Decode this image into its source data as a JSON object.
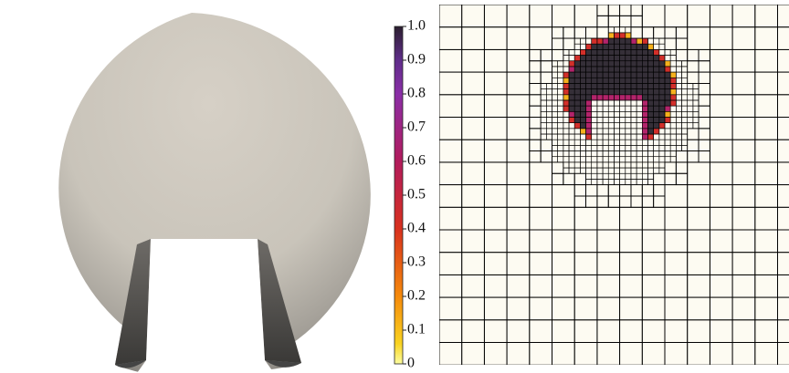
{
  "colorbar": {
    "ticks": [
      0,
      0.1,
      0.2,
      0.3,
      0.4,
      0.5,
      0.6,
      0.7,
      0.8,
      0.9,
      {
        "value": 1,
        "label": "1.0"
      }
    ]
  }
}
